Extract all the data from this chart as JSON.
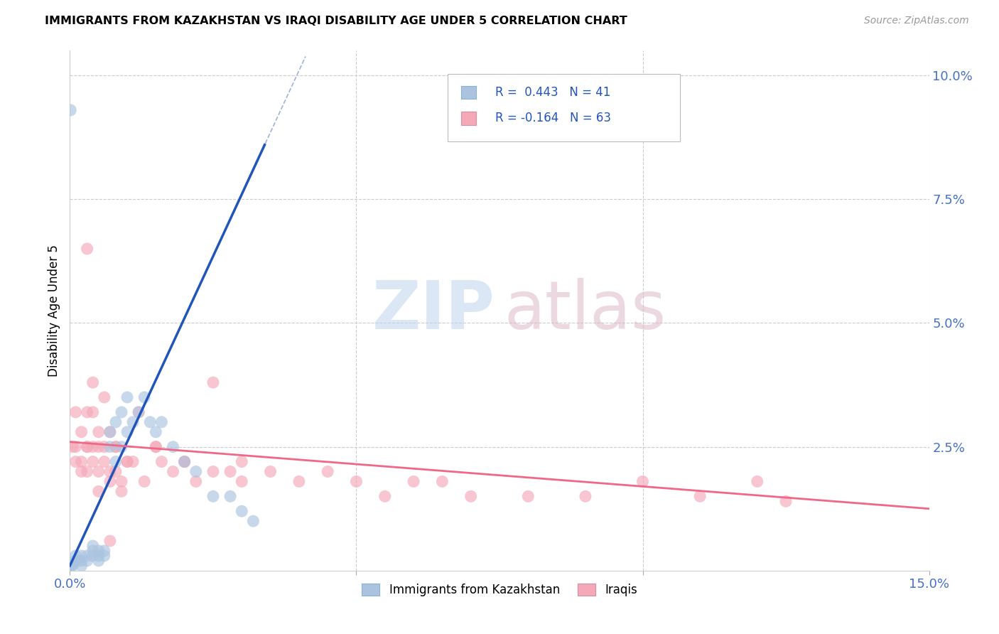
{
  "title": "IMMIGRANTS FROM KAZAKHSTAN VS IRAQI DISABILITY AGE UNDER 5 CORRELATION CHART",
  "source": "Source: ZipAtlas.com",
  "ylabel": "Disability Age Under 5",
  "xlim": [
    0.0,
    0.15
  ],
  "ylim": [
    0.0,
    0.105
  ],
  "kaz_color": "#aac4e0",
  "iraq_color": "#f4a8b8",
  "kaz_trend_color": "#2255bb",
  "iraq_trend_color": "#f06888",
  "watermark_zip_color": "#c0d4ee",
  "watermark_atlas_color": "#ddb8c8",
  "legend_label_kaz": "Immigrants from Kazakhstan",
  "legend_label_iraq": "Iraqis",
  "kaz_R": "0.443",
  "kaz_N": "41",
  "iraq_R": "-0.164",
  "iraq_N": "63",
  "kaz_trend_slope": 2.5,
  "kaz_trend_intercept": 0.001,
  "iraq_trend_slope": -0.09,
  "iraq_trend_intercept": 0.026,
  "kaz_x": [
    0.0002,
    0.0005,
    0.001,
    0.001,
    0.0015,
    0.002,
    0.002,
    0.002,
    0.003,
    0.003,
    0.004,
    0.004,
    0.004,
    0.005,
    0.005,
    0.005,
    0.006,
    0.006,
    0.007,
    0.007,
    0.008,
    0.008,
    0.009,
    0.009,
    0.01,
    0.01,
    0.011,
    0.012,
    0.013,
    0.014,
    0.015,
    0.016,
    0.018,
    0.02,
    0.022,
    0.025,
    0.028,
    0.03,
    0.032,
    0.0001,
    0.0001
  ],
  "kaz_y": [
    0.001,
    0.001,
    0.002,
    0.003,
    0.002,
    0.001,
    0.002,
    0.003,
    0.002,
    0.003,
    0.003,
    0.004,
    0.005,
    0.002,
    0.003,
    0.004,
    0.003,
    0.004,
    0.025,
    0.028,
    0.022,
    0.03,
    0.025,
    0.032,
    0.028,
    0.035,
    0.03,
    0.032,
    0.035,
    0.03,
    0.028,
    0.03,
    0.025,
    0.022,
    0.02,
    0.015,
    0.015,
    0.012,
    0.01,
    0.001,
    0.093
  ],
  "iraq_x": [
    0.0005,
    0.001,
    0.001,
    0.002,
    0.002,
    0.003,
    0.003,
    0.003,
    0.004,
    0.004,
    0.004,
    0.005,
    0.005,
    0.005,
    0.006,
    0.006,
    0.007,
    0.007,
    0.008,
    0.008,
    0.009,
    0.01,
    0.011,
    0.012,
    0.013,
    0.015,
    0.016,
    0.018,
    0.02,
    0.022,
    0.025,
    0.028,
    0.03,
    0.035,
    0.04,
    0.045,
    0.05,
    0.055,
    0.06,
    0.065,
    0.07,
    0.08,
    0.09,
    0.1,
    0.11,
    0.12,
    0.125,
    0.003,
    0.004,
    0.005,
    0.006,
    0.001,
    0.002,
    0.007,
    0.008,
    0.009,
    0.01,
    0.015,
    0.02,
    0.025,
    0.03,
    0.007,
    0.003
  ],
  "iraq_y": [
    0.025,
    0.022,
    0.032,
    0.02,
    0.028,
    0.02,
    0.025,
    0.032,
    0.025,
    0.032,
    0.038,
    0.025,
    0.02,
    0.028,
    0.025,
    0.022,
    0.018,
    0.028,
    0.02,
    0.025,
    0.016,
    0.022,
    0.022,
    0.032,
    0.018,
    0.025,
    0.022,
    0.02,
    0.022,
    0.018,
    0.038,
    0.02,
    0.022,
    0.02,
    0.018,
    0.02,
    0.018,
    0.015,
    0.018,
    0.018,
    0.015,
    0.015,
    0.015,
    0.018,
    0.015,
    0.018,
    0.014,
    0.025,
    0.022,
    0.016,
    0.035,
    0.025,
    0.022,
    0.02,
    0.025,
    0.018,
    0.022,
    0.025,
    0.022,
    0.02,
    0.018,
    0.006,
    0.065
  ]
}
